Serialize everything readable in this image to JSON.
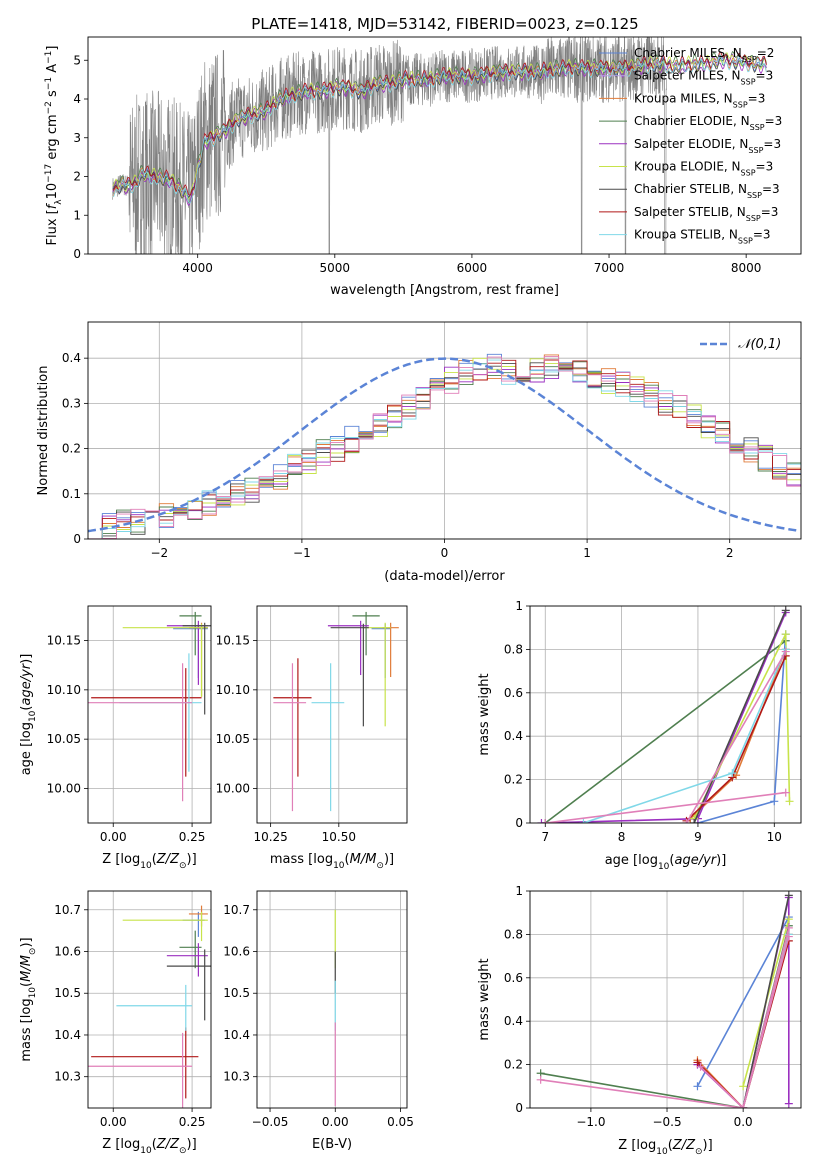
{
  "figure": {
    "title": "PLATE=1418, MJD=53142, FIBERID=0023, z=0.125"
  },
  "colors": {
    "models": [
      "#5b84d6",
      "#b8a4e6",
      "#e07b39",
      "#4f7f4f",
      "#9b30c0",
      "#c7e34a",
      "#4a4a4a",
      "#b01818",
      "#80d8e8"
    ],
    "data": "#808080",
    "gauss": "#5b84d6",
    "grid": "#b0b0b0",
    "hist": [
      "#5b84d6",
      "#e07b39",
      "#4f7f4f",
      "#9b30c0",
      "#c7e34a",
      "#4a4a4a",
      "#b01818",
      "#80d8e8",
      "#e07fb8"
    ]
  },
  "chart_data": [
    {
      "id": "spectrum",
      "type": "line",
      "xlabel": "wavelength [Angstrom, rest frame]",
      "ylabel": "Flux [f_λ10^−17 erg cm^−2 s^−1 A^−1]",
      "xlim": [
        3200,
        8400
      ],
      "ylim": [
        0,
        5.6
      ],
      "xticks": [
        4000,
        5000,
        6000,
        7000,
        8000
      ],
      "yticks": [
        0,
        1,
        2,
        3,
        4,
        5
      ],
      "grid": false,
      "legend_position": "top-right",
      "legend": [
        "Chabrier MILES, N_SSP=2",
        "Salpeter MILES, N_SSP=3",
        "Kroupa MILES, N_SSP=3",
        "Chabrier ELODIE, N_SSP=3",
        "Salpeter ELODIE, N_SSP=3",
        "Kroupa ELODIE, N_SSP=3",
        "Chabrier STELIB, N_SSP=3",
        "Salpeter STELIB, N_SSP=3",
        "Kroupa STELIB, N_SSP=3"
      ],
      "model_curve": {
        "x": [
          3380,
          3450,
          3500,
          3550,
          3600,
          3650,
          3700,
          3750,
          3800,
          3850,
          3900,
          3950,
          4000,
          4050,
          4100,
          4200,
          4300,
          4400,
          4500,
          4600,
          4700,
          4800,
          4900,
          5000,
          5100,
          5200,
          5300,
          5400,
          5500,
          5600,
          5700,
          5800,
          5900,
          6000,
          6100,
          6200,
          6300,
          6400,
          6500,
          6600,
          6700,
          6800,
          6900,
          7000,
          7100,
          7200,
          7300,
          7400,
          7500,
          7600,
          7700,
          7800,
          7900,
          8000,
          8100
        ],
        "y": [
          1.7,
          1.8,
          1.75,
          1.85,
          2.1,
          2.0,
          2.0,
          1.95,
          1.9,
          1.75,
          1.6,
          1.4,
          2.2,
          2.9,
          3.0,
          3.2,
          3.5,
          3.6,
          3.7,
          4.0,
          4.1,
          4.2,
          4.2,
          4.3,
          4.3,
          4.2,
          4.4,
          4.4,
          4.5,
          4.5,
          4.5,
          4.6,
          4.6,
          4.6,
          4.65,
          4.7,
          4.7,
          4.7,
          4.7,
          4.75,
          4.8,
          4.8,
          4.8,
          4.8,
          4.8,
          4.85,
          4.9,
          4.9,
          4.85,
          4.9,
          4.9,
          5.0,
          5.0,
          4.95,
          4.9
        ]
      }
    },
    {
      "id": "residuals",
      "type": "histogram",
      "xlabel": "(data-model)/error",
      "ylabel": "Normed distribution",
      "xlim": [
        -2.5,
        2.5
      ],
      "ylim": [
        0,
        0.48
      ],
      "xticks": [
        -2,
        -1,
        0,
        1,
        2
      ],
      "yticks": [
        0.0,
        0.1,
        0.2,
        0.3,
        0.4
      ],
      "grid": true,
      "legend_position": "top-right",
      "legend": [
        "𝒩(0,1)"
      ],
      "bin_width": 0.1,
      "reference_curve": "normal(0,1)",
      "histogram_envelope": {
        "bin_start": -2.5,
        "values": [
          0.03,
          0.03,
          0.04,
          0.04,
          0.05,
          0.05,
          0.06,
          0.07,
          0.08,
          0.09,
          0.1,
          0.11,
          0.12,
          0.14,
          0.16,
          0.17,
          0.19,
          0.2,
          0.22,
          0.23,
          0.25,
          0.27,
          0.29,
          0.31,
          0.33,
          0.35,
          0.37,
          0.38,
          0.38,
          0.37,
          0.36,
          0.37,
          0.38,
          0.38,
          0.37,
          0.36,
          0.35,
          0.34,
          0.33,
          0.32,
          0.3,
          0.29,
          0.27,
          0.25,
          0.23,
          0.21,
          0.2,
          0.18,
          0.16,
          0.14
        ]
      }
    },
    {
      "id": "age_vs_Z",
      "type": "errorbar",
      "xlabel": "Z [log10(Z/Z⊙)]",
      "ylabel": "age  [log10(age/yr)]",
      "xlim": [
        -0.08,
        0.31
      ],
      "ylim": [
        9.965,
        10.185
      ],
      "xticks": [
        0.0,
        0.25
      ],
      "xticklabels": [
        "0.00",
        "0.25"
      ],
      "yticks": [
        10.0,
        10.05,
        10.1,
        10.15
      ],
      "yticklabels": [
        "10.00",
        "10.05",
        "10.10",
        "10.15"
      ],
      "grid": true,
      "points": [
        {
          "x": 0.27,
          "y": 10.162,
          "xerr": [
            0.08,
            0.03
          ],
          "yerr": [
            0.05,
            0.005
          ],
          "c": 0
        },
        {
          "x": 0.28,
          "y": 10.163,
          "xerr": [
            0.04,
            0.02
          ],
          "yerr": [
            0.07,
            0.005
          ],
          "c": 1
        },
        {
          "x": 0.26,
          "y": 10.175,
          "xerr": [
            0.05,
            0.02
          ],
          "yerr": [
            0.04,
            0.004
          ],
          "c": 2
        },
        {
          "x": 0.27,
          "y": 10.165,
          "xerr": [
            0.1,
            0.03
          ],
          "yerr": [
            0.06,
            0.005
          ],
          "c": 3
        },
        {
          "x": 0.28,
          "y": 10.163,
          "xerr": [
            0.25,
            0.02
          ],
          "yerr": [
            0.07,
            0.004
          ],
          "c": 4
        },
        {
          "x": 0.29,
          "y": 10.165,
          "xerr": [
            0.07,
            0.02
          ],
          "yerr": [
            0.09,
            0.003
          ],
          "c": 5
        },
        {
          "x": 0.23,
          "y": 10.092,
          "xerr": [
            0.3,
            0.05
          ],
          "yerr": [
            0.08,
            0.03
          ],
          "c": 6
        },
        {
          "x": 0.24,
          "y": 10.087,
          "xerr": [
            0.22,
            0.04
          ],
          "yerr": [
            0.07,
            0.05
          ],
          "c": 7
        },
        {
          "x": 0.22,
          "y": 10.087,
          "xerr": [
            0.3,
            0.03
          ],
          "yerr": [
            0.1,
            0.04
          ],
          "c": 8
        }
      ]
    },
    {
      "id": "age_vs_mass",
      "type": "errorbar",
      "xlabel": "mass [log10(M/M⊙)]",
      "ylabel": "",
      "xlim": [
        10.2,
        10.75
      ],
      "ylim": [
        9.965,
        10.185
      ],
      "xticks": [
        10.25,
        10.5
      ],
      "xticklabels": [
        "10.25",
        "10.50"
      ],
      "yticks": [
        10.0,
        10.05,
        10.1,
        10.15
      ],
      "yticklabels": [
        "10.00",
        "10.05",
        "10.10",
        "10.15"
      ],
      "grid": true,
      "points": [
        {
          "x": 10.67,
          "y": 10.162,
          "xerr": [
            0.05,
            0.02
          ],
          "yerr": [
            0.05,
            0.005
          ],
          "c": 0
        },
        {
          "x": 10.69,
          "y": 10.163,
          "xerr": [
            0.03,
            0.03
          ],
          "yerr": [
            0.05,
            0.005
          ],
          "c": 1
        },
        {
          "x": 10.6,
          "y": 10.175,
          "xerr": [
            0.05,
            0.05
          ],
          "yerr": [
            0.04,
            0.004
          ],
          "c": 2
        },
        {
          "x": 10.58,
          "y": 10.165,
          "xerr": [
            0.12,
            0.03
          ],
          "yerr": [
            0.05,
            0.005
          ],
          "c": 3
        },
        {
          "x": 10.67,
          "y": 10.163,
          "xerr": [
            0.08,
            0.02
          ],
          "yerr": [
            0.1,
            0.005
          ],
          "c": 4
        },
        {
          "x": 10.59,
          "y": 10.163,
          "xerr": [
            0.12,
            0.02
          ],
          "yerr": [
            0.1,
            0.004
          ],
          "c": 5
        },
        {
          "x": 10.35,
          "y": 10.092,
          "xerr": [
            0.09,
            0.05
          ],
          "yerr": [
            0.08,
            0.04
          ],
          "c": 6
        },
        {
          "x": 10.47,
          "y": 10.087,
          "xerr": [
            0.07,
            0.05
          ],
          "yerr": [
            0.11,
            0.04
          ],
          "c": 7
        },
        {
          "x": 10.33,
          "y": 10.087,
          "xerr": [
            0.07,
            0.05
          ],
          "yerr": [
            0.11,
            0.04
          ],
          "c": 8
        }
      ]
    },
    {
      "id": "weight_vs_age",
      "type": "line",
      "xlabel": "age  [log10(age/yr)]",
      "ylabel": "mass weight",
      "xlim": [
        6.8,
        10.35
      ],
      "ylim": [
        0,
        1.0
      ],
      "xticks": [
        7,
        8,
        9,
        10
      ],
      "yticks": [
        0.0,
        0.2,
        0.4,
        0.6,
        0.8,
        1.0
      ],
      "grid": true,
      "series": [
        {
          "c": 0,
          "x": [
            9.0,
            10.0,
            10.15
          ],
          "y": [
            0.0,
            0.1,
            0.87
          ]
        },
        {
          "c": 1,
          "x": [
            8.9,
            9.5,
            10.15
          ],
          "y": [
            0.02,
            0.22,
            0.8
          ]
        },
        {
          "c": 2,
          "x": [
            7.0,
            10.15
          ],
          "y": [
            0.0,
            0.84
          ]
        },
        {
          "c": 3,
          "x": [
            6.95,
            9.0,
            10.15
          ],
          "y": [
            0.0,
            0.02,
            0.97
          ]
        },
        {
          "c": 4,
          "x": [
            8.95,
            10.15,
            10.2
          ],
          "y": [
            0.02,
            0.87,
            0.1
          ]
        },
        {
          "c": 5,
          "x": [
            8.95,
            10.15
          ],
          "y": [
            0.0,
            0.98
          ]
        },
        {
          "c": 6,
          "x": [
            8.85,
            9.45,
            10.15
          ],
          "y": [
            0.01,
            0.21,
            0.77
          ]
        },
        {
          "c": 7,
          "x": [
            7.5,
            9.45,
            10.15
          ],
          "y": [
            0.0,
            0.23,
            0.8
          ]
        },
        {
          "c": 8,
          "x": [
            8.85,
            10.15
          ],
          "y": [
            0.0,
            0.79
          ]
        },
        {
          "c": 9,
          "x": [
            7.0,
            10.15
          ],
          "y": [
            0.0,
            0.14
          ]
        }
      ]
    },
    {
      "id": "mass_vs_Z",
      "type": "errorbar",
      "xlabel": "Z [log10(Z/Z⊙)]",
      "ylabel": "mass [log10(M/M⊙)]",
      "xlim": [
        -0.08,
        0.31
      ],
      "ylim": [
        10.225,
        10.745
      ],
      "xticks": [
        0.0,
        0.25
      ],
      "xticklabels": [
        "0.00",
        "0.25"
      ],
      "yticks": [
        10.3,
        10.4,
        10.5,
        10.6,
        10.7
      ],
      "yticklabels": [
        "10.3",
        "10.4",
        "10.5",
        "10.6",
        "10.7"
      ],
      "grid": true,
      "points": [
        {
          "x": 0.27,
          "y": 10.675,
          "xerr": [
            0.05,
            0.02
          ],
          "yerr": [
            0.04,
            0.02
          ],
          "c": 0
        },
        {
          "x": 0.28,
          "y": 10.69,
          "xerr": [
            0.04,
            0.02
          ],
          "yerr": [
            0.03,
            0.02
          ],
          "c": 1
        },
        {
          "x": 0.26,
          "y": 10.61,
          "xerr": [
            0.05,
            0.02
          ],
          "yerr": [
            0.05,
            0.04
          ],
          "c": 2
        },
        {
          "x": 0.27,
          "y": 10.59,
          "xerr": [
            0.1,
            0.03
          ],
          "yerr": [
            0.05,
            0.03
          ],
          "c": 3
        },
        {
          "x": 0.28,
          "y": 10.675,
          "xerr": [
            0.25,
            0.02
          ],
          "yerr": [
            0.05,
            0.02
          ],
          "c": 4
        },
        {
          "x": 0.29,
          "y": 10.565,
          "xerr": [
            0.12,
            0.02
          ],
          "yerr": [
            0.13,
            0.04
          ],
          "c": 5
        },
        {
          "x": 0.23,
          "y": 10.348,
          "xerr": [
            0.3,
            0.04
          ],
          "yerr": [
            0.1,
            0.07
          ],
          "c": 6
        },
        {
          "x": 0.23,
          "y": 10.47,
          "xerr": [
            0.22,
            0.02
          ],
          "yerr": [
            0.06,
            0.05
          ],
          "c": 7
        },
        {
          "x": 0.22,
          "y": 10.325,
          "xerr": [
            0.3,
            0.03
          ],
          "yerr": [
            0.1,
            0.08
          ],
          "c": 8
        }
      ]
    },
    {
      "id": "mass_vs_ebv",
      "type": "errorbar",
      "xlabel": "E(B-V)",
      "ylabel": "",
      "xlim": [
        -0.06,
        0.055
      ],
      "ylim": [
        10.225,
        10.745
      ],
      "xticks": [
        -0.05,
        0.0,
        0.05
      ],
      "xticklabels": [
        "−0.05",
        "0.00",
        "0.05"
      ],
      "yticks": [
        10.3,
        10.4,
        10.5,
        10.6,
        10.7
      ],
      "yticklabels": [
        "10.3",
        "10.4",
        "10.5",
        "10.6",
        "10.7"
      ],
      "grid": true,
      "points": [
        {
          "x": 0.0,
          "y": 10.66,
          "xerr": [
            0,
            0
          ],
          "yerr": [
            0.08,
            0.08
          ],
          "c": 9
        },
        {
          "x": 0.0,
          "y": 10.62,
          "xerr": [
            0,
            0
          ],
          "yerr": [
            0.06,
            0.08
          ],
          "c": 4
        },
        {
          "x": 0.0,
          "y": 10.55,
          "xerr": [
            0,
            0
          ],
          "yerr": [
            0.05,
            0.05
          ],
          "c": 5
        },
        {
          "x": 0.0,
          "y": 10.47,
          "xerr": [
            0,
            0
          ],
          "yerr": [
            0.06,
            0.06
          ],
          "c": 7
        },
        {
          "x": 0.0,
          "y": 10.33,
          "xerr": [
            0,
            0
          ],
          "yerr": [
            0.1,
            0.1
          ],
          "c": 8
        }
      ]
    },
    {
      "id": "weight_vs_Z",
      "type": "line",
      "xlabel": "Z [log10(Z/Z⊙)]",
      "ylabel": "mass weight",
      "xlim": [
        -1.4,
        0.38
      ],
      "ylim": [
        0,
        1.0
      ],
      "xticks": [
        -1.0,
        -0.5,
        0.0
      ],
      "xticklabels": [
        "−1.0",
        "−0.5",
        "0.0"
      ],
      "yticks": [
        0.0,
        0.2,
        0.4,
        0.6,
        0.8,
        1.0
      ],
      "grid": true,
      "series": [
        {
          "c": 0,
          "x": [
            -0.3,
            0.3
          ],
          "y": [
            0.1,
            0.88
          ]
        },
        {
          "c": 1,
          "x": [
            -0.3,
            0.0,
            0.3
          ],
          "y": [
            0.22,
            0.0,
            0.8
          ]
        },
        {
          "c": 2,
          "x": [
            -1.33,
            0.0,
            0.3
          ],
          "y": [
            0.16,
            0.0,
            0.84
          ]
        },
        {
          "c": 3,
          "x": [
            -0.3,
            0.0,
            0.3,
            0.3
          ],
          "y": [
            0.2,
            0.0,
            0.97,
            0.02
          ]
        },
        {
          "c": 4,
          "x": [
            0.0,
            0.3
          ],
          "y": [
            0.1,
            0.87
          ]
        },
        {
          "c": 5,
          "x": [
            0.0,
            0.3
          ],
          "y": [
            0.0,
            0.98
          ]
        },
        {
          "c": 6,
          "x": [
            -0.3,
            0.0,
            0.3
          ],
          "y": [
            0.21,
            0.0,
            0.77
          ]
        },
        {
          "c": 7,
          "x": [
            0.0,
            0.3
          ],
          "y": [
            0.0,
            0.8
          ]
        },
        {
          "c": 8,
          "x": [
            -0.28,
            0.0,
            0.3
          ],
          "y": [
            0.19,
            0.0,
            0.79
          ]
        },
        {
          "c": 9,
          "x": [
            -1.33,
            0.0,
            0.3
          ],
          "y": [
            0.13,
            0.0,
            0.83
          ]
        }
      ]
    }
  ]
}
